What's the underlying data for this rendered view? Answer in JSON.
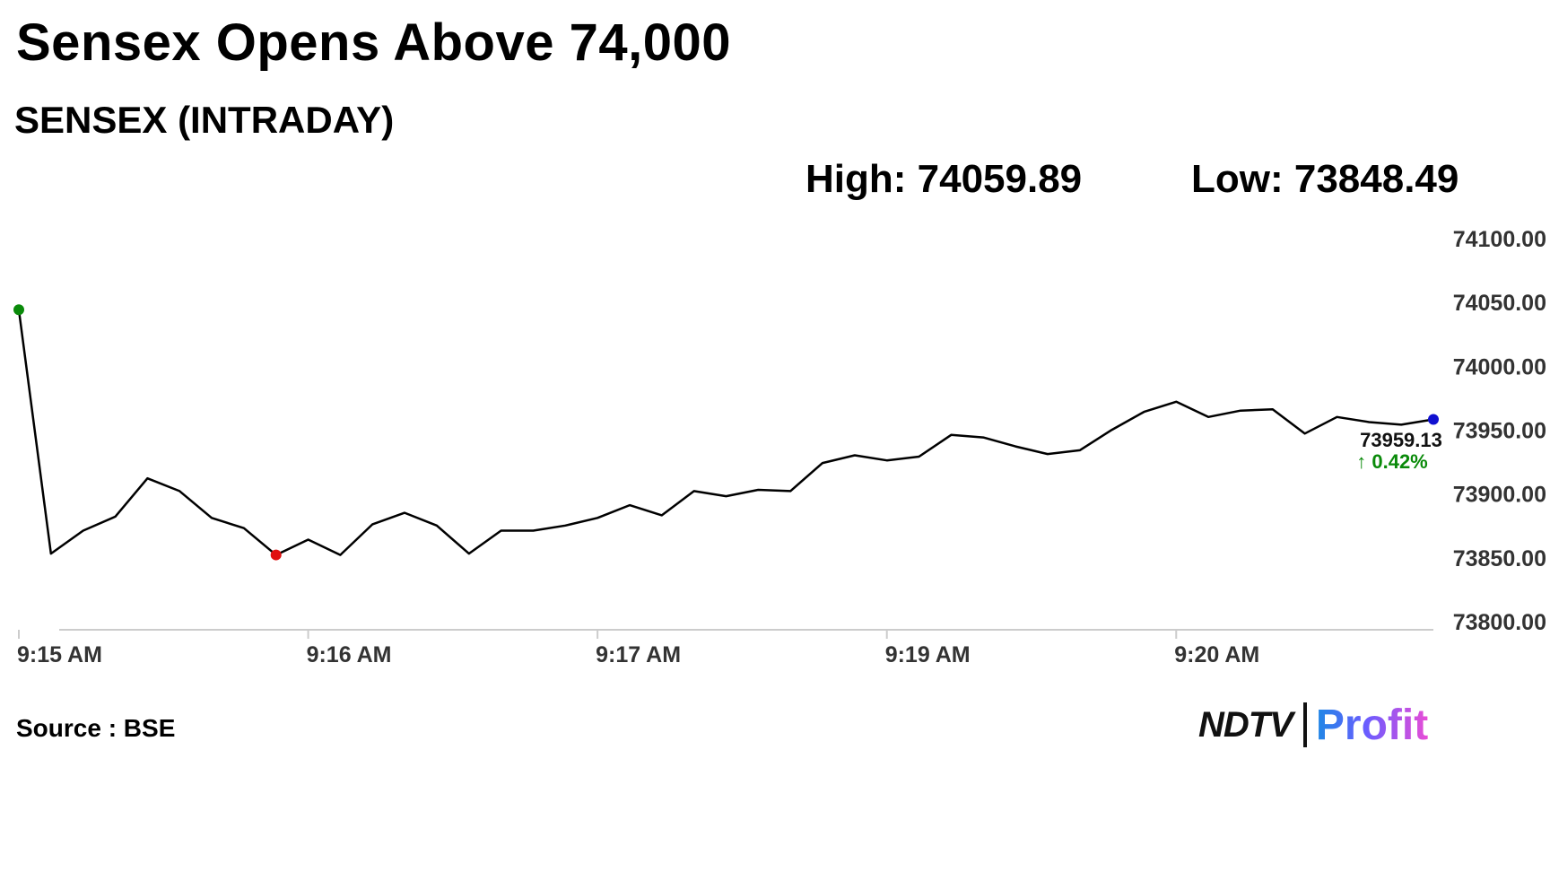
{
  "headline": "Sensex Opens Above 74,000",
  "subtitle": "SENSEX (INTRADAY)",
  "stats": {
    "high": "High: 74059.89",
    "low": "Low: 73848.49"
  },
  "source": "Source : BSE",
  "logo": {
    "left": "NDTV",
    "right": "Profit"
  },
  "chart_data": {
    "type": "line",
    "title": "SENSEX (INTRADAY)",
    "ylim": [
      73800,
      74100
    ],
    "y_ticks": [
      74100,
      74050,
      74000,
      73950,
      73900,
      73850,
      73800
    ],
    "y_tick_labels": [
      "74100.00",
      "74050.00",
      "74000.00",
      "73950.00",
      "73900.00",
      "73850.00",
      "73800.00"
    ],
    "x_tick_labels": [
      "9:15 AM",
      "9:16 AM",
      "9:17 AM",
      "9:19 AM",
      "9:20 AM"
    ],
    "x_tick_positions": [
      0,
      9,
      18,
      27,
      36
    ],
    "grid": false,
    "series": [
      {
        "values": [
          74045,
          73854,
          73872,
          73883,
          73913,
          73903,
          73882,
          73874,
          73853,
          73865,
          73853,
          73877,
          73886,
          73876,
          73854,
          73872,
          73872,
          73876,
          73882,
          73892,
          73884,
          73903,
          73899,
          73904,
          73903,
          73925,
          73931,
          73927,
          73930,
          73947,
          73945,
          73938,
          73932,
          73935,
          73951,
          73965,
          73973,
          73961,
          73966,
          73967,
          73948,
          73961,
          73957,
          73955,
          73959.13
        ],
        "color": "#000000"
      }
    ],
    "markers": [
      {
        "index": 0,
        "color": "#0a8a0a"
      },
      {
        "index": 8,
        "color": "#e01010"
      },
      {
        "index": 44,
        "color": "#1010d0"
      }
    ],
    "last_value_label": "73959.13",
    "change_label": "↑ 0.42%",
    "change_color": "#0a8a0a"
  }
}
